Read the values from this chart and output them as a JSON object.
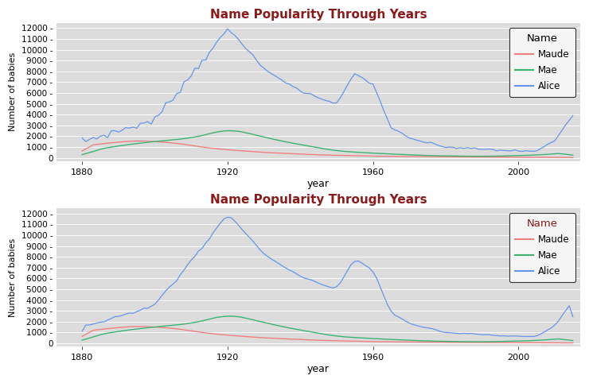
{
  "title": "Name Popularity Through Years",
  "xlabel": "year",
  "ylabel": "Number of babies",
  "title_color": "#8B1A1A",
  "fig_bg_color": "#FFFFFF",
  "plot_bg_color": "#DCDCDC",
  "grid_color": "#FFFFFF",
  "colors": {
    "Maude": "#F08080",
    "Mae": "#3CB371",
    "Alice": "#6495ED"
  },
  "ylim": [
    -300,
    12500
  ],
  "yticks": [
    0,
    1000,
    2000,
    3000,
    4000,
    5000,
    6000,
    7000,
    8000,
    9000,
    10000,
    11000,
    12000
  ],
  "xticks": [
    1880,
    1920,
    1960,
    2000
  ],
  "legend_title_color_top": "#000000",
  "legend_title_color_bottom": "#8B1A1A",
  "legend_bg": "#F5F5F5",
  "legend_edge_color": "#333333"
}
